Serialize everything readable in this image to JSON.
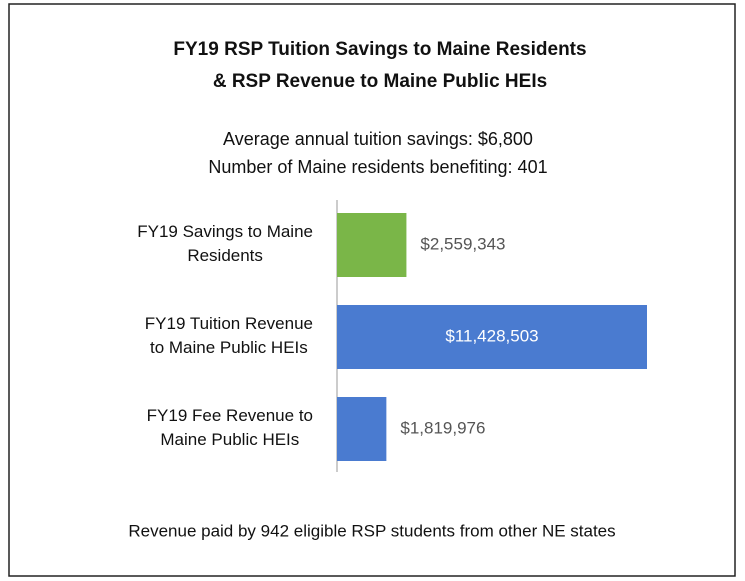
{
  "chart_data": {
    "type": "bar",
    "orientation": "horizontal",
    "title": [
      "FY19 RSP Tuition Savings to Maine Residents",
      "& RSP Revenue to Maine Public HEIs"
    ],
    "subtitle": [
      "Average annual tuition savings: $6,800",
      "Number of Maine residents benefiting: 401"
    ],
    "categories": [
      "FY19 Savings to Maine Residents",
      "FY19 Tuition Revenue to Maine Public HEIs",
      "FY19 Fee Revenue to Maine Public HEIs"
    ],
    "values": [
      2559343,
      11428503,
      1819976
    ],
    "value_labels": [
      "$2,559,343",
      "$11,428,503",
      "$1,819,976"
    ],
    "colors": [
      "#7ab648",
      "#4a7bd0",
      "#4a7bd0"
    ],
    "footnote": "Revenue paid by 942 eligible RSP students from other NE states"
  }
}
